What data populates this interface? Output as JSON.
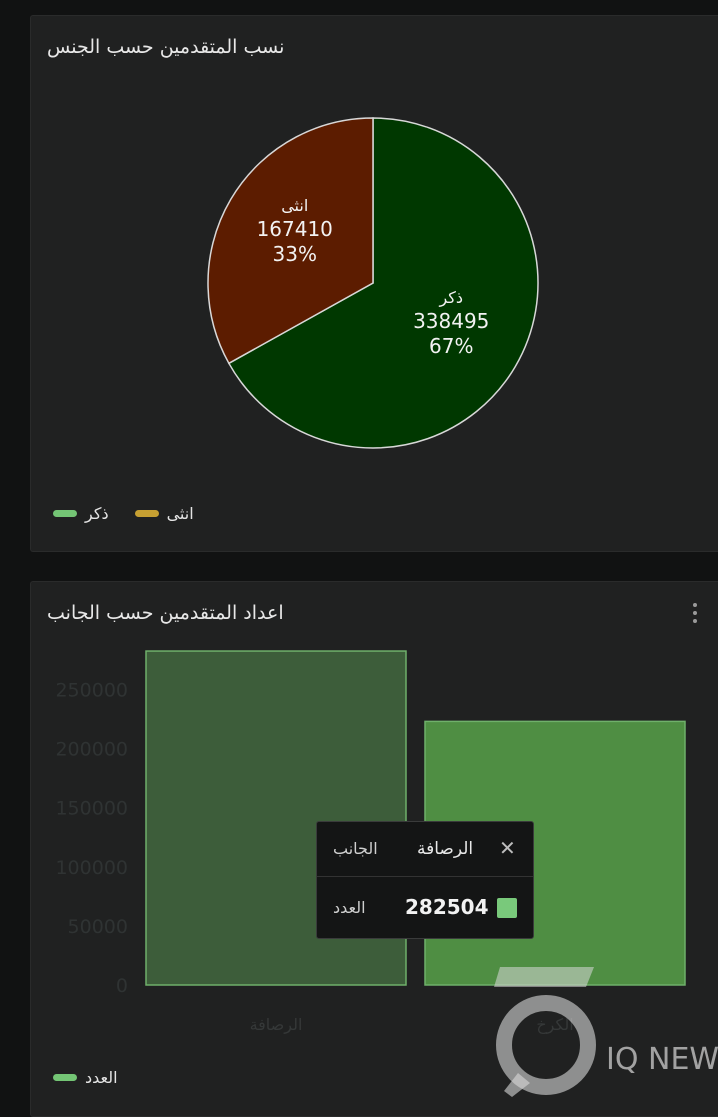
{
  "pie_card": {
    "title": "نسب المتقدمين حسب الجنس",
    "legend": [
      {
        "label": "ذكر",
        "color": "#74c575"
      },
      {
        "label": "انثى",
        "color": "#c6a032"
      }
    ]
  },
  "bar_card": {
    "title": "اعداد المتقدمين حسب الجانب",
    "legend": [
      {
        "label": "العدد",
        "color": "#74c575"
      }
    ],
    "tooltip": {
      "category": "الرصافة",
      "axis_name": "الجانب",
      "series_name": "العدد",
      "value": "282504"
    }
  },
  "watermark": {
    "text": "IQ NEWS"
  },
  "chart_data": [
    {
      "type": "pie",
      "title": "نسب المتقدمين حسب الجنس",
      "slices": [
        {
          "label": "ذكر",
          "value": 338495,
          "percent": "67%",
          "color": "#003800"
        },
        {
          "label": "انثى",
          "value": 167410,
          "percent": "33%",
          "color": "#5c1c00"
        }
      ]
    },
    {
      "type": "bar",
      "title": "اعداد المتقدمين حسب الجانب",
      "categories": [
        "الرصافة",
        "الكرخ"
      ],
      "series": [
        {
          "name": "العدد",
          "values": [
            282504,
            223000
          ]
        }
      ],
      "yticks": [
        "0",
        "50000",
        "100000",
        "150000",
        "200000",
        "250000"
      ],
      "ylim": [
        0,
        280000
      ],
      "colors": {
        "highlight": "#3d5d3a",
        "normal": "#4f8e43"
      }
    }
  ]
}
